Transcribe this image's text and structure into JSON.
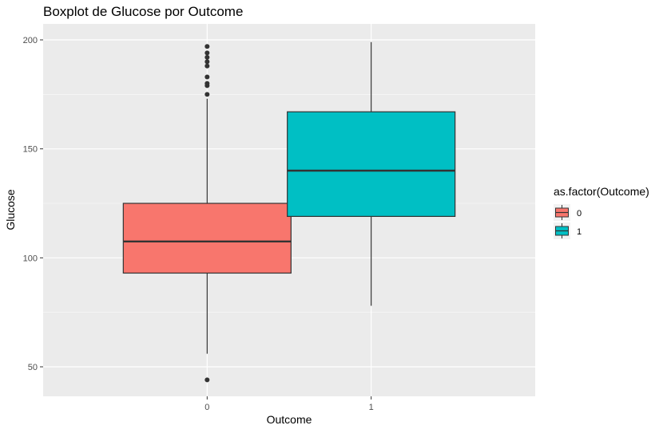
{
  "chart_data": {
    "type": "boxplot",
    "title": "Boxplot de Glucose por Outcome",
    "xlabel": "Outcome",
    "ylabel": "Glucose",
    "categories": [
      "0",
      "1"
    ],
    "y_ticks": [
      50,
      100,
      150,
      200
    ],
    "ylim": [
      40,
      205
    ],
    "grid": true,
    "legend": {
      "title": "as.factor(Outcome)",
      "position": "right",
      "items": [
        {
          "label": "0",
          "color": "#F8766D"
        },
        {
          "label": "1",
          "color": "#00BFC4"
        }
      ]
    },
    "boxes": [
      {
        "category": "0",
        "color": "#F8766D",
        "lower_whisker": 56,
        "q1": 93,
        "median": 107.5,
        "q3": 125,
        "upper_whisker": 173,
        "outliers": [
          44,
          175,
          179,
          180,
          183,
          188,
          190,
          192,
          194,
          197
        ]
      },
      {
        "category": "1",
        "color": "#00BFC4",
        "lower_whisker": 78,
        "q1": 119,
        "median": 140,
        "q3": 167,
        "upper_whisker": 199,
        "outliers": []
      }
    ],
    "colors": {
      "panel_background": "#EBEBEB",
      "grid_major": "#FFFFFF",
      "box_outline": "#333333"
    }
  }
}
